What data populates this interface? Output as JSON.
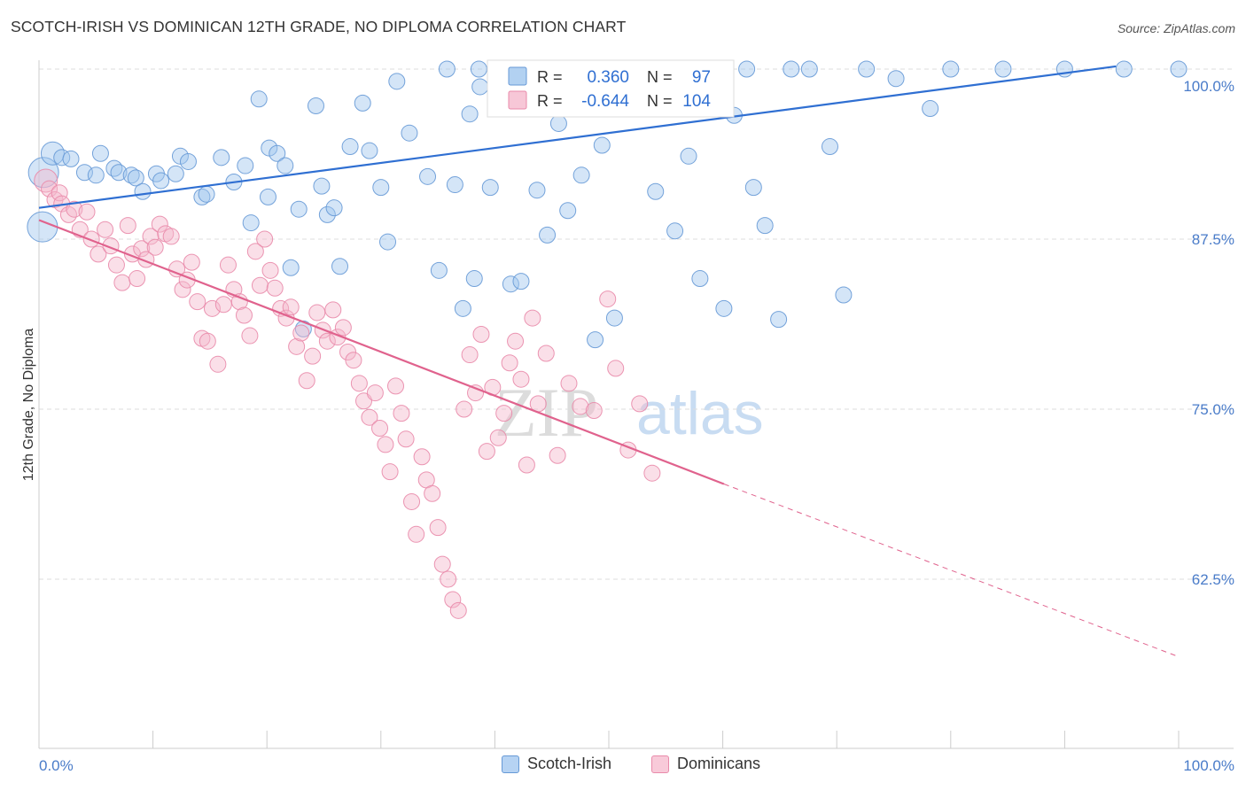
{
  "title": "SCOTCH-IRISH VS DOMINICAN 12TH GRADE, NO DIPLOMA CORRELATION CHART",
  "source": "Source: ZipAtlas.com",
  "watermark": {
    "zip": "ZIP",
    "atlas": "atlas"
  },
  "colors": {
    "blue_fill": "#9fc5ee",
    "blue_stroke": "#6699d6",
    "blue_line": "#2f6fd2",
    "pink_fill": "#f5b9cd",
    "pink_stroke": "#e98aaa",
    "pink_line": "#e0628d",
    "tick_label": "#4a7cc9",
    "grid": "#dddddd"
  },
  "stats": {
    "r_label": "R =",
    "n_label": "N =",
    "rows": [
      {
        "series": "Scotch-Irish",
        "r": "0.360",
        "n": "97"
      },
      {
        "series": "Dominicans",
        "r": "-0.644",
        "n": "104"
      }
    ]
  },
  "legend": {
    "items": [
      "Scotch-Irish",
      "Dominicans"
    ]
  },
  "chart_data": {
    "type": "scatter",
    "title": "SCOTCH-IRISH VS DOMINICAN 12TH GRADE, NO DIPLOMA CORRELATION CHART",
    "xlabel": "",
    "ylabel": "12th Grade, No Diploma",
    "xlim": [
      0,
      100
    ],
    "ylim": [
      50,
      100
    ],
    "x_tick_labels": [
      "0.0%",
      "100.0%"
    ],
    "y_ticks": [
      62.5,
      75.0,
      87.5,
      100.0
    ],
    "y_tick_labels": [
      "62.5%",
      "75.0%",
      "87.5%",
      "100.0%"
    ],
    "grid": "horizontal dashed",
    "legend_position": "bottom-center",
    "series": [
      {
        "name": "Scotch-Irish",
        "color": "#9fc5ee",
        "trend": {
          "x": [
            0,
            94.5
          ],
          "y": [
            89.8,
            100.2
          ]
        },
        "points": [
          [
            0.4,
            92.4,
            3
          ],
          [
            0.3,
            88.4,
            3
          ],
          [
            1.2,
            93.8,
            2
          ],
          [
            2.0,
            93.5,
            1
          ],
          [
            2.8,
            93.4,
            1
          ],
          [
            4.0,
            92.4,
            1
          ],
          [
            5.4,
            93.8,
            1
          ],
          [
            5.0,
            92.2,
            1
          ],
          [
            6.6,
            92.7,
            1
          ],
          [
            7.0,
            92.4,
            1
          ],
          [
            8.1,
            92.2,
            1
          ],
          [
            8.5,
            92.0,
            1
          ],
          [
            9.1,
            91.0,
            1
          ],
          [
            10.3,
            92.3,
            1
          ],
          [
            10.7,
            91.8,
            1
          ],
          [
            12.4,
            93.6,
            1
          ],
          [
            13.1,
            93.2,
            1
          ],
          [
            12.0,
            92.3,
            1
          ],
          [
            14.3,
            90.6,
            1
          ],
          [
            14.7,
            90.8,
            1
          ],
          [
            16.0,
            93.5,
            1
          ],
          [
            17.1,
            91.7,
            1
          ],
          [
            18.1,
            92.9,
            1
          ],
          [
            18.6,
            88.7,
            1
          ],
          [
            20.1,
            90.6,
            1
          ],
          [
            20.2,
            94.2,
            1
          ],
          [
            20.9,
            93.8,
            1
          ],
          [
            21.6,
            92.9,
            1
          ],
          [
            22.8,
            89.7,
            1
          ],
          [
            19.3,
            97.8,
            1
          ],
          [
            24.3,
            97.3,
            1
          ],
          [
            22.1,
            85.4,
            1
          ],
          [
            23.2,
            80.9,
            1
          ],
          [
            24.8,
            91.4,
            1
          ],
          [
            25.3,
            89.3,
            1
          ],
          [
            25.9,
            89.8,
            1
          ],
          [
            26.4,
            85.5,
            1
          ],
          [
            27.3,
            94.3,
            1
          ],
          [
            28.4,
            97.5,
            1
          ],
          [
            29.0,
            94.0,
            1
          ],
          [
            30.0,
            91.3,
            1
          ],
          [
            30.6,
            87.3,
            1
          ],
          [
            31.4,
            99.1,
            1
          ],
          [
            32.5,
            95.3,
            1
          ],
          [
            34.1,
            92.1,
            1
          ],
          [
            35.1,
            85.2,
            1
          ],
          [
            36.5,
            91.5,
            1
          ],
          [
            37.2,
            82.4,
            1
          ],
          [
            37.8,
            96.7,
            1
          ],
          [
            38.2,
            84.6,
            1
          ],
          [
            38.7,
            98.7,
            1
          ],
          [
            39.6,
            91.3,
            1
          ],
          [
            40.5,
            97.3,
            1
          ],
          [
            41.4,
            84.2,
            1
          ],
          [
            42.3,
            84.4,
            1
          ],
          [
            43.0,
            98.9,
            1
          ],
          [
            43.7,
            91.1,
            1
          ],
          [
            44.6,
            87.8,
            1
          ],
          [
            45.6,
            96.0,
            1
          ],
          [
            46.4,
            89.6,
            1
          ],
          [
            47.6,
            92.2,
            1
          ],
          [
            48.8,
            80.1,
            1
          ],
          [
            49.4,
            94.4,
            1
          ],
          [
            50.5,
            81.7,
            1
          ],
          [
            52.0,
            97.4,
            1
          ],
          [
            53.0,
            99.0,
            1
          ],
          [
            54.1,
            91.0,
            1
          ],
          [
            55.8,
            88.1,
            1
          ],
          [
            57.0,
            93.6,
            1
          ],
          [
            58.0,
            84.6,
            1
          ],
          [
            59.1,
            98.7,
            1
          ],
          [
            60.1,
            82.4,
            1
          ],
          [
            61.0,
            96.6,
            1
          ],
          [
            62.7,
            91.3,
            1
          ],
          [
            63.7,
            88.5,
            1
          ],
          [
            64.9,
            81.6,
            1
          ],
          [
            67.6,
            100.0,
            1
          ],
          [
            69.4,
            94.3,
            1
          ],
          [
            70.6,
            83.4,
            1
          ],
          [
            72.6,
            100.0,
            1
          ],
          [
            75.2,
            99.3,
            1
          ],
          [
            78.2,
            97.1,
            1
          ],
          [
            80.0,
            100.0,
            1
          ],
          [
            84.6,
            100.0,
            1
          ],
          [
            90.0,
            100.0,
            1
          ],
          [
            95.2,
            100.0,
            1
          ],
          [
            100.0,
            100.0,
            1
          ],
          [
            35.8,
            100.0,
            1
          ],
          [
            38.6,
            100.0,
            1
          ],
          [
            40.8,
            100.0,
            1
          ],
          [
            45.4,
            100.0,
            1
          ],
          [
            48.2,
            100.0,
            1
          ],
          [
            52.4,
            100.0,
            1
          ],
          [
            55.6,
            100.0,
            1
          ],
          [
            58.4,
            100.0,
            1
          ],
          [
            62.1,
            100.0,
            1
          ],
          [
            66.0,
            100.0,
            1
          ]
        ]
      },
      {
        "name": "Dominicans",
        "color": "#f5b9cd",
        "trend": {
          "x": [
            0,
            60.1
          ],
          "y": [
            88.9,
            69.5
          ]
        },
        "trend_dashed": {
          "x": [
            60.1,
            100
          ],
          "y": [
            69.5,
            56.8
          ]
        },
        "points": [
          [
            0.6,
            91.8,
            2
          ],
          [
            0.9,
            91.2,
            1
          ],
          [
            1.4,
            90.4,
            1
          ],
          [
            1.8,
            90.9,
            1
          ],
          [
            2.0,
            90.1,
            1
          ],
          [
            2.6,
            89.3,
            1
          ],
          [
            3.1,
            89.7,
            1
          ],
          [
            3.6,
            88.2,
            1
          ],
          [
            4.2,
            89.5,
            1
          ],
          [
            4.6,
            87.5,
            1
          ],
          [
            5.2,
            86.4,
            1
          ],
          [
            5.8,
            88.2,
            1
          ],
          [
            6.3,
            87.0,
            1
          ],
          [
            6.8,
            85.6,
            1
          ],
          [
            7.3,
            84.3,
            1
          ],
          [
            7.8,
            88.5,
            1
          ],
          [
            8.2,
            86.4,
            1
          ],
          [
            8.6,
            84.6,
            1
          ],
          [
            9.0,
            86.8,
            1
          ],
          [
            9.4,
            86.0,
            1
          ],
          [
            9.8,
            87.7,
            1
          ],
          [
            10.2,
            86.9,
            1
          ],
          [
            10.6,
            88.6,
            1
          ],
          [
            11.1,
            87.9,
            1
          ],
          [
            11.6,
            87.7,
            1
          ],
          [
            12.1,
            85.3,
            1
          ],
          [
            12.6,
            83.8,
            1
          ],
          [
            13.0,
            84.5,
            1
          ],
          [
            13.4,
            85.8,
            1
          ],
          [
            13.9,
            82.9,
            1
          ],
          [
            14.3,
            80.2,
            1
          ],
          [
            14.8,
            80.0,
            1
          ],
          [
            15.2,
            82.4,
            1
          ],
          [
            15.7,
            78.3,
            1
          ],
          [
            16.2,
            82.7,
            1
          ],
          [
            16.6,
            85.6,
            1
          ],
          [
            17.1,
            83.8,
            1
          ],
          [
            17.6,
            82.9,
            1
          ],
          [
            18.0,
            81.9,
            1
          ],
          [
            18.5,
            80.4,
            1
          ],
          [
            19.0,
            86.6,
            1
          ],
          [
            19.4,
            84.1,
            1
          ],
          [
            19.8,
            87.5,
            1
          ],
          [
            20.3,
            85.2,
            1
          ],
          [
            20.7,
            83.9,
            1
          ],
          [
            21.2,
            82.4,
            1
          ],
          [
            21.7,
            81.7,
            1
          ],
          [
            22.1,
            82.5,
            1
          ],
          [
            22.6,
            79.6,
            1
          ],
          [
            23.0,
            80.6,
            1
          ],
          [
            23.5,
            77.1,
            1
          ],
          [
            24.0,
            78.9,
            1
          ],
          [
            24.4,
            82.1,
            1
          ],
          [
            24.9,
            80.8,
            1
          ],
          [
            25.3,
            80.0,
            1
          ],
          [
            25.8,
            82.3,
            1
          ],
          [
            26.2,
            80.3,
            1
          ],
          [
            26.7,
            81.0,
            1
          ],
          [
            27.1,
            79.2,
            1
          ],
          [
            27.6,
            78.6,
            1
          ],
          [
            28.1,
            76.9,
            1
          ],
          [
            28.5,
            75.6,
            1
          ],
          [
            29.0,
            74.4,
            1
          ],
          [
            29.5,
            76.2,
            1
          ],
          [
            29.9,
            73.6,
            1
          ],
          [
            30.4,
            72.4,
            1
          ],
          [
            30.8,
            70.4,
            1
          ],
          [
            31.3,
            76.7,
            1
          ],
          [
            31.8,
            74.7,
            1
          ],
          [
            32.2,
            72.8,
            1
          ],
          [
            32.7,
            68.2,
            1
          ],
          [
            33.1,
            65.8,
            1
          ],
          [
            33.6,
            71.5,
            1
          ],
          [
            34.0,
            69.8,
            1
          ],
          [
            34.5,
            68.8,
            1
          ],
          [
            35.0,
            66.3,
            1
          ],
          [
            35.4,
            63.6,
            1
          ],
          [
            35.9,
            62.5,
            1
          ],
          [
            36.3,
            61.0,
            1
          ],
          [
            36.8,
            60.2,
            1
          ],
          [
            37.3,
            75.0,
            1
          ],
          [
            37.8,
            79.0,
            1
          ],
          [
            38.3,
            76.2,
            1
          ],
          [
            38.8,
            80.5,
            1
          ],
          [
            39.3,
            71.9,
            1
          ],
          [
            39.8,
            76.6,
            1
          ],
          [
            40.3,
            72.9,
            1
          ],
          [
            40.8,
            74.7,
            1
          ],
          [
            41.3,
            78.4,
            1
          ],
          [
            41.8,
            80.0,
            1
          ],
          [
            42.3,
            77.2,
            1
          ],
          [
            42.8,
            70.9,
            1
          ],
          [
            43.3,
            81.7,
            1
          ],
          [
            43.8,
            75.4,
            1
          ],
          [
            44.5,
            79.1,
            1
          ],
          [
            45.5,
            71.6,
            1
          ],
          [
            46.5,
            76.9,
            1
          ],
          [
            47.5,
            75.2,
            1
          ],
          [
            48.7,
            74.9,
            1
          ],
          [
            49.9,
            83.1,
            1
          ],
          [
            50.6,
            78.0,
            1
          ],
          [
            51.7,
            72.0,
            1
          ],
          [
            52.7,
            75.4,
            1
          ],
          [
            53.8,
            70.3,
            1
          ]
        ]
      }
    ]
  }
}
